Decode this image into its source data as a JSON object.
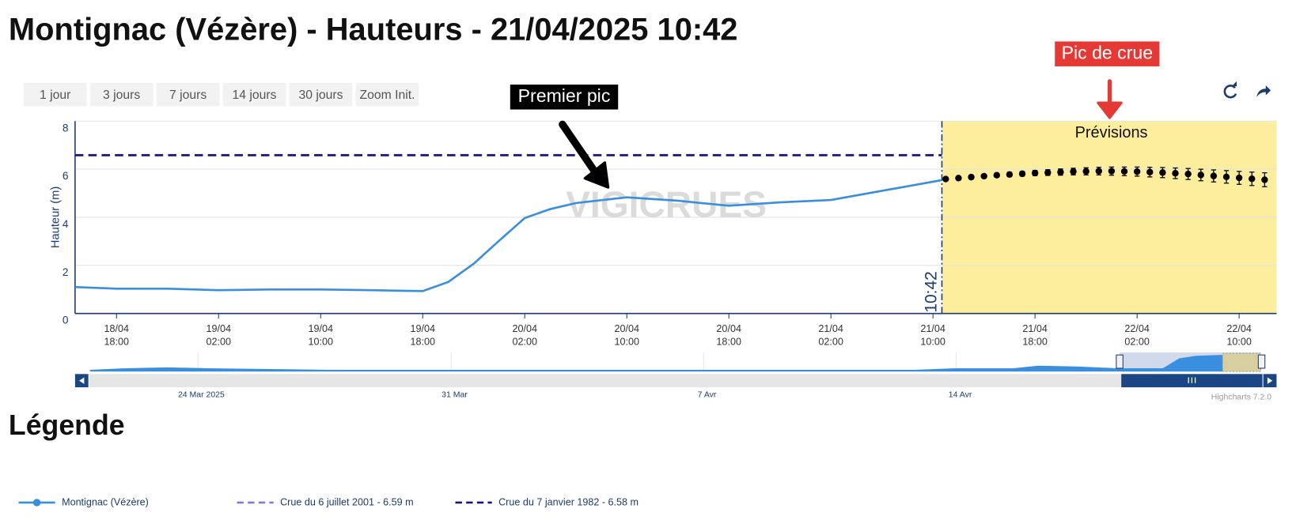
{
  "header": {
    "title": "Montignac (Vézère) - Hauteurs - 21/04/2025 10:42"
  },
  "buttons": [
    "1 jour",
    "3 jours",
    "7 jours",
    "14 jours",
    "30 jours",
    "Zoom Init."
  ],
  "chart_data": {
    "type": "line",
    "y_label": "Hauteur (m)",
    "ylim": [
      0,
      8
    ],
    "yticks": [
      0,
      2,
      4,
      6,
      8
    ],
    "xlim": [
      "18/04 14:45",
      "22/04 12:56"
    ],
    "xticks": [
      "18/04 18:00",
      "19/04 02:00",
      "19/04 10:00",
      "19/04 18:00",
      "20/04 02:00",
      "20/04 10:00",
      "20/04 18:00",
      "21/04 02:00",
      "21/04 10:00",
      "21/04 18:00",
      "22/04 02:00",
      "22/04 10:00"
    ],
    "grid": true,
    "series": [
      {
        "name": "Montignac (Vézère)",
        "color": "#3a8ee0",
        "x": [
          "18/04 14:45",
          "18/04 18:00",
          "18/04 22:00",
          "19/04 02:00",
          "19/04 06:00",
          "19/04 10:00",
          "19/04 14:00",
          "19/04 18:00",
          "19/04 20:00",
          "19/04 22:00",
          "20/04 00:00",
          "20/04 02:00",
          "20/04 04:00",
          "20/04 06:00",
          "20/04 10:00",
          "20/04 14:00",
          "20/04 18:00",
          "20/04 22:00",
          "21/04 02:00",
          "21/04 06:00",
          "21/04 10:00",
          "21/04 10:42"
        ],
        "values": [
          1.1,
          1.03,
          1.03,
          0.97,
          1.0,
          1.0,
          0.97,
          0.93,
          1.31,
          2.07,
          3.03,
          3.97,
          4.34,
          4.59,
          4.83,
          4.69,
          4.48,
          4.62,
          4.72,
          5.1,
          5.48,
          5.55
        ]
      }
    ],
    "forecast": {
      "label": "Prévisions",
      "band_color": "#fdee9e",
      "color": "#000000",
      "x": [
        "21/04 11:00",
        "21/04 12:00",
        "21/04 13:00",
        "21/04 14:00",
        "21/04 15:00",
        "21/04 16:00",
        "21/04 17:00",
        "21/04 18:00",
        "21/04 19:00",
        "21/04 20:00",
        "21/04 21:00",
        "21/04 22:00",
        "21/04 23:00",
        "22/04 00:00",
        "22/04 01:00",
        "22/04 02:00",
        "22/04 03:00",
        "22/04 04:00",
        "22/04 05:00",
        "22/04 06:00",
        "22/04 07:00",
        "22/04 08:00",
        "22/04 09:00",
        "22/04 10:00",
        "22/04 11:00",
        "22/04 12:00"
      ],
      "values": [
        5.59,
        5.63,
        5.67,
        5.71,
        5.75,
        5.78,
        5.81,
        5.84,
        5.86,
        5.88,
        5.9,
        5.91,
        5.92,
        5.92,
        5.91,
        5.9,
        5.88,
        5.86,
        5.83,
        5.8,
        5.76,
        5.72,
        5.68,
        5.64,
        5.6,
        5.56
      ],
      "errors": [
        0.04,
        0.05,
        0.06,
        0.07,
        0.08,
        0.09,
        0.1,
        0.11,
        0.12,
        0.13,
        0.14,
        0.15,
        0.16,
        0.17,
        0.18,
        0.19,
        0.2,
        0.21,
        0.22,
        0.23,
        0.24,
        0.25,
        0.26,
        0.27,
        0.28,
        0.29
      ]
    },
    "thresholds": [
      {
        "name": "Crue du 6 juillet 2001 - 6.59 m",
        "value": 6.59,
        "color": "#7b7be6"
      },
      {
        "name": "Crue du 7 janvier 1982 - 6.58 m",
        "value": 6.58,
        "color": "#14147a"
      }
    ],
    "now_line": {
      "x": "21/04 10:42",
      "label": "10:42"
    },
    "annotations": [
      {
        "text": "Premier pic"
      },
      {
        "text": "Pic de crue"
      }
    ],
    "watermark": "VIGICRUES",
    "credits": "Highcharts 7.2.0",
    "navigator": {
      "labels": [
        "24 Mar 2025",
        "31 Mar",
        "7 Avr",
        "14 Avr"
      ]
    }
  },
  "legend": {
    "title": "Légende"
  }
}
